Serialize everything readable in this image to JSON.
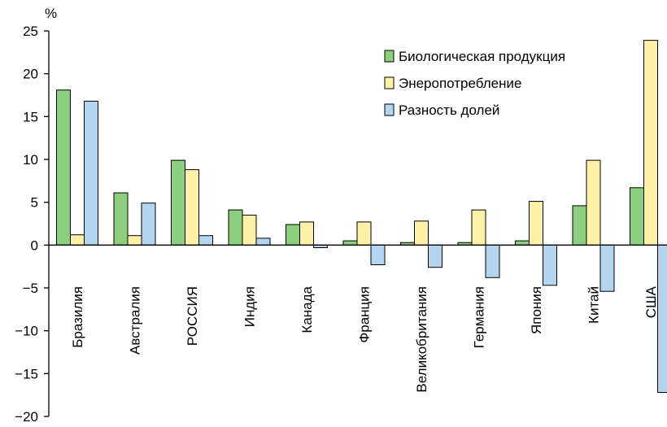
{
  "chart_data": {
    "type": "bar",
    "unit": "%",
    "categories": [
      "Бразилия",
      "Австралия",
      "РОССИЯ",
      "Индия",
      "Канада",
      "Франция",
      "Великобритания",
      "Германия",
      "Япония",
      "Китай",
      "США"
    ],
    "series": [
      {
        "name": "Биологическая продукция",
        "color": "#8ccf7e",
        "values": [
          18.1,
          6.1,
          9.9,
          4.1,
          2.4,
          0.5,
          0.3,
          0.3,
          0.5,
          4.6,
          6.7
        ]
      },
      {
        "name": "Энеропотребление",
        "color": "#fff2a6",
        "values": [
          1.2,
          1.1,
          8.8,
          3.5,
          2.7,
          2.7,
          2.8,
          4.1,
          5.1,
          9.9,
          23.9
        ]
      },
      {
        "name": "Разность долей",
        "color": "#b4d5ef",
        "values": [
          16.8,
          4.9,
          1.1,
          0.8,
          -0.3,
          -2.3,
          -2.6,
          -3.8,
          -4.7,
          -5.4,
          -17.2
        ]
      }
    ],
    "yticks": [
      "25",
      "20",
      "15",
      "10",
      "5",
      "0",
      "-5",
      "-10",
      "-15",
      "-20"
    ],
    "ylim": [
      -20,
      25
    ],
    "grid": false,
    "legend_position": "top-right"
  }
}
